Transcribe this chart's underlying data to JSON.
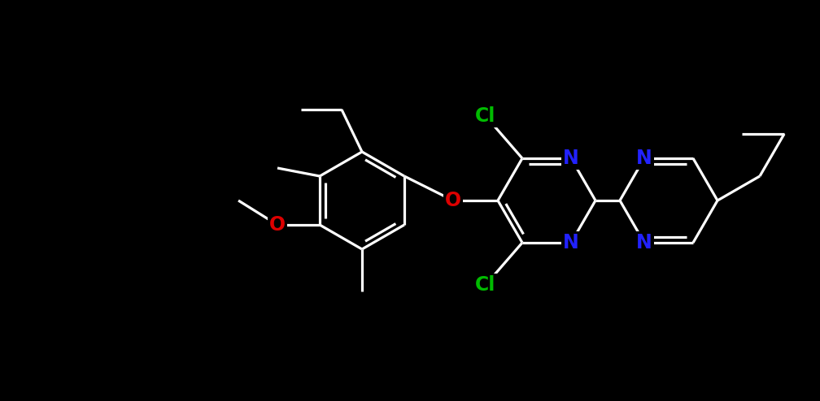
{
  "bg": "#000000",
  "bond_color": "#ffffff",
  "lw": 2.3,
  "N_color": "#2222ff",
  "O_color": "#dd0000",
  "Cl_color": "#00bb00",
  "font_size": 17
}
